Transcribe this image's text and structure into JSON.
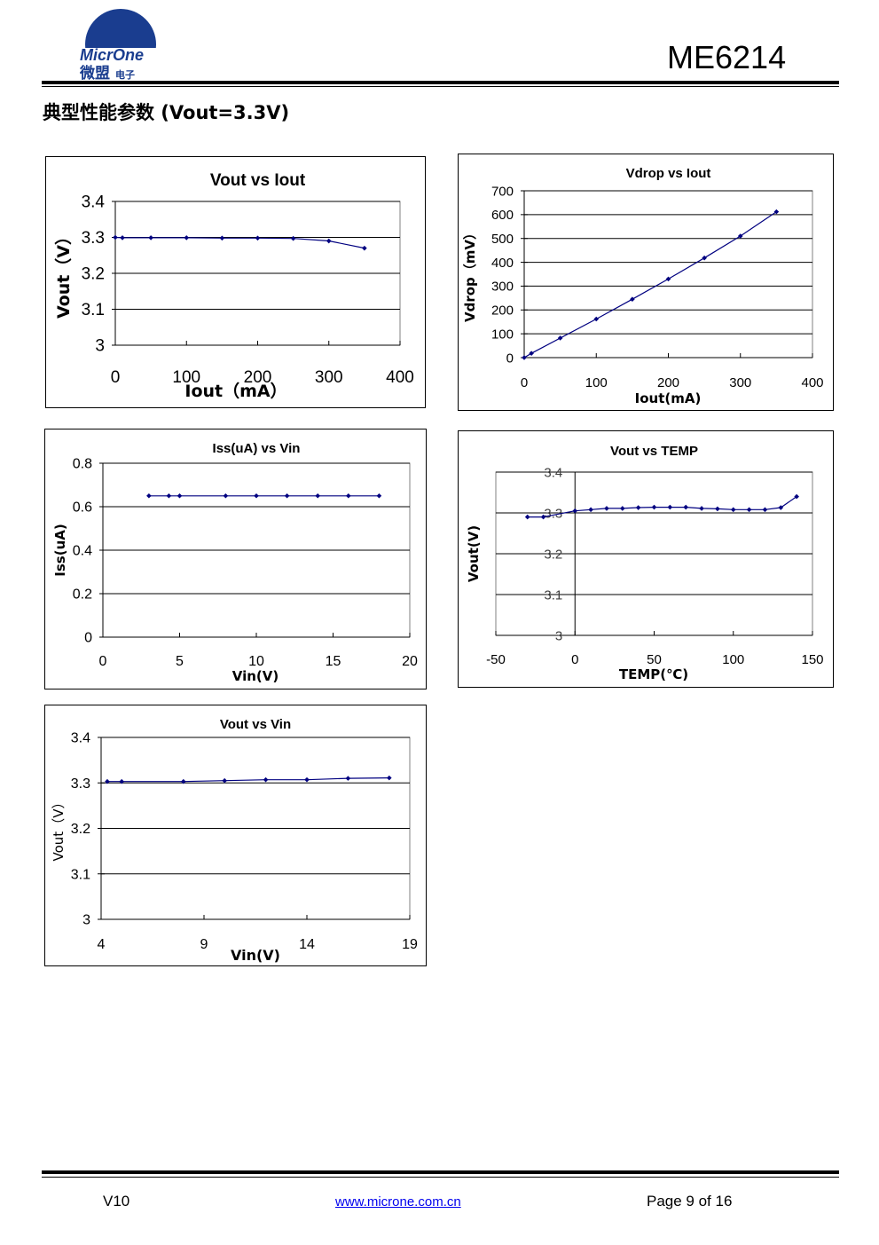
{
  "header": {
    "logo_text": "MicrOne",
    "logo_cn": "微盟",
    "logo_cn_small": "电子",
    "product": "ME6214"
  },
  "section_title": "典型性能参数 (Vout=3.3V)",
  "footer": {
    "version": "V10",
    "website": "www.microne.com.cn",
    "page": "Page 9 of 16"
  },
  "colors": {
    "series": "#000080",
    "grid": "#000000"
  },
  "chart_data": [
    {
      "id": "c1",
      "type": "line",
      "title": "Vout vs Iout",
      "xlabel": "Iout（mA）",
      "ylabel": "Vout（V）",
      "xlim": [
        0,
        400
      ],
      "ylim": [
        3,
        3.4
      ],
      "xticks": [
        "0",
        "100",
        "200",
        "300",
        "400"
      ],
      "xtickvals": [
        0,
        100,
        200,
        300,
        400
      ],
      "yticks": [
        "3",
        "3.1",
        "3.2",
        "3.3",
        "3.4"
      ],
      "ytickvals": [
        3,
        3.1,
        3.2,
        3.3,
        3.4
      ],
      "grid": true,
      "x": [
        0,
        10,
        50,
        100,
        150,
        200,
        250,
        300,
        350
      ],
      "y": [
        3.3,
        3.299,
        3.299,
        3.299,
        3.298,
        3.298,
        3.297,
        3.29,
        3.27
      ]
    },
    {
      "id": "c2",
      "type": "line",
      "title": "Vdrop vs Iout",
      "xlabel": "Iout(mA)",
      "ylabel": "Vdrop（mV）",
      "xlim": [
        0,
        400
      ],
      "ylim": [
        0,
        700
      ],
      "xticks": [
        "0",
        "100",
        "200",
        "300",
        "400"
      ],
      "xtickvals": [
        0,
        100,
        200,
        300,
        400
      ],
      "yticks": [
        "0",
        "100",
        "200",
        "300",
        "400",
        "500",
        "600",
        "700"
      ],
      "ytickvals": [
        0,
        100,
        200,
        300,
        400,
        500,
        600,
        700
      ],
      "grid": true,
      "x": [
        0,
        10,
        50,
        100,
        150,
        200,
        250,
        300,
        350
      ],
      "y": [
        0,
        18,
        82,
        162,
        245,
        330,
        418,
        510,
        612
      ]
    },
    {
      "id": "c3",
      "type": "line",
      "title": "Iss(uA) vs Vin",
      "xlabel": "Vin(V)",
      "ylabel": "Iss(uA)",
      "xlim": [
        0,
        20
      ],
      "ylim": [
        0,
        0.8
      ],
      "xticks": [
        "0",
        "5",
        "10",
        "15",
        "20"
      ],
      "xtickvals": [
        0,
        5,
        10,
        15,
        20
      ],
      "yticks": [
        "0",
        "0.2",
        "0.4",
        "0.6",
        "0.8"
      ],
      "ytickvals": [
        0,
        0.2,
        0.4,
        0.6,
        0.8
      ],
      "grid": true,
      "x": [
        3,
        4.3,
        5,
        8,
        10,
        12,
        14,
        16,
        18
      ],
      "y": [
        0.65,
        0.65,
        0.65,
        0.65,
        0.65,
        0.65,
        0.65,
        0.65,
        0.65
      ]
    },
    {
      "id": "c4",
      "type": "line",
      "title": "Vout vs TEMP",
      "xlabel": "TEMP(℃)",
      "ylabel": "Vout(V)",
      "xlim": [
        -50,
        150
      ],
      "ylim": [
        3,
        3.4
      ],
      "xticks": [
        "-50",
        "0",
        "50",
        "100",
        "150"
      ],
      "xtickvals": [
        -50,
        0,
        50,
        100,
        150
      ],
      "yticks": [
        "3",
        "3.1",
        "3.2",
        "3.3",
        "3.4"
      ],
      "ytickvals": [
        3,
        3.1,
        3.2,
        3.3,
        3.4
      ],
      "grid": true,
      "x": [
        -30,
        -20,
        0,
        10,
        20,
        30,
        40,
        50,
        60,
        70,
        80,
        90,
        100,
        110,
        120,
        130,
        140
      ],
      "y": [
        3.29,
        3.29,
        3.305,
        3.308,
        3.311,
        3.311,
        3.313,
        3.314,
        3.314,
        3.314,
        3.311,
        3.31,
        3.308,
        3.308,
        3.308,
        3.313,
        3.34
      ]
    },
    {
      "id": "c5",
      "type": "line",
      "title": "Vout vs Vin",
      "xlabel": "Vin(V)",
      "ylabel": "Vout（V）",
      "xlim": [
        4,
        19
      ],
      "ylim": [
        3,
        3.4
      ],
      "xticks": [
        "4",
        "9",
        "14",
        "19"
      ],
      "xtickvals": [
        4,
        9,
        14,
        19
      ],
      "yticks": [
        "3",
        "3.1",
        "3.2",
        "3.3",
        "3.4"
      ],
      "ytickvals": [
        3,
        3.1,
        3.2,
        3.3,
        3.4
      ],
      "grid": true,
      "x": [
        4.3,
        5,
        8,
        10,
        12,
        14,
        16,
        18
      ],
      "y": [
        3.303,
        3.303,
        3.303,
        3.305,
        3.307,
        3.307,
        3.31,
        3.311
      ]
    }
  ]
}
